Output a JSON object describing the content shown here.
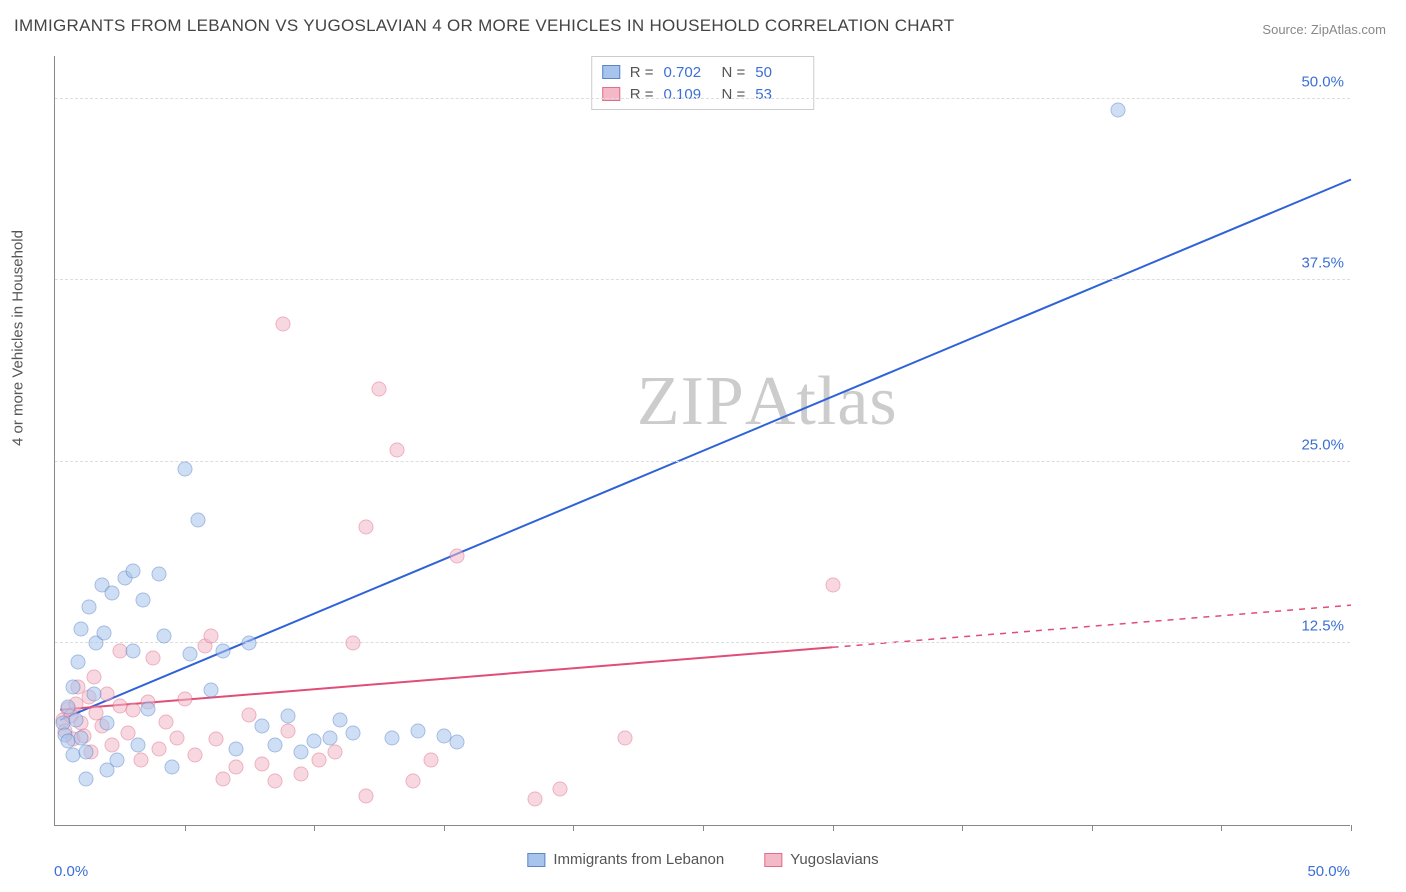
{
  "title": "IMMIGRANTS FROM LEBANON VS YUGOSLAVIAN 4 OR MORE VEHICLES IN HOUSEHOLD CORRELATION CHART",
  "source_label": "Source:",
  "source_name": "ZipAtlas.com",
  "yaxis_title": "4 or more Vehicles in Household",
  "watermark": {
    "bold": "ZIP",
    "light": "Atlas"
  },
  "chart": {
    "type": "scatter",
    "background_color": "#ffffff",
    "grid_color": "#dddddd",
    "axis_color": "#888888",
    "tick_label_color": "#3b6fd4",
    "tick_fontsize": 15,
    "xlim": [
      0,
      50
    ],
    "ylim": [
      0,
      53
    ],
    "xtick_label_min": "0.0%",
    "xtick_label_max": "50.0%",
    "xtick_positions": [
      5,
      10,
      15,
      20,
      25,
      30,
      35,
      40,
      45,
      50
    ],
    "ytick_positions": [
      12.5,
      25.0,
      37.5,
      50.0
    ],
    "ytick_labels": [
      "12.5%",
      "25.0%",
      "37.5%",
      "50.0%"
    ],
    "marker_size": 15,
    "marker_opacity": 0.55,
    "series": [
      {
        "name": "Immigrants from Lebanon",
        "fill_color": "#a7c4ec",
        "stroke_color": "#5a85c9",
        "line_color": "#2f62d9",
        "line_width": 2,
        "trend": {
          "x1": 0.2,
          "y1": 7.3,
          "x2": 50,
          "y2": 44.5,
          "dash_extent_x": 50
        },
        "R": "0.702",
        "N": "50",
        "points": [
          [
            0.3,
            7.0
          ],
          [
            0.4,
            6.2
          ],
          [
            0.5,
            5.8
          ],
          [
            0.5,
            8.1
          ],
          [
            0.7,
            9.5
          ],
          [
            0.7,
            4.8
          ],
          [
            0.8,
            7.2
          ],
          [
            0.9,
            11.2
          ],
          [
            1.0,
            6.0
          ],
          [
            1.0,
            13.5
          ],
          [
            1.2,
            5.0
          ],
          [
            1.3,
            15.0
          ],
          [
            1.5,
            9.0
          ],
          [
            1.6,
            12.5
          ],
          [
            1.8,
            16.5
          ],
          [
            1.9,
            13.2
          ],
          [
            2.0,
            7.0
          ],
          [
            2.2,
            16.0
          ],
          [
            2.4,
            4.5
          ],
          [
            2.7,
            17.0
          ],
          [
            3.0,
            17.5
          ],
          [
            3.0,
            12.0
          ],
          [
            3.2,
            5.5
          ],
          [
            3.4,
            15.5
          ],
          [
            3.6,
            8.0
          ],
          [
            4.0,
            17.3
          ],
          [
            4.2,
            13.0
          ],
          [
            4.5,
            4.0
          ],
          [
            5.0,
            24.5
          ],
          [
            5.2,
            11.8
          ],
          [
            5.5,
            21.0
          ],
          [
            6.0,
            9.3
          ],
          [
            6.5,
            12.0
          ],
          [
            7.0,
            5.2
          ],
          [
            7.5,
            12.5
          ],
          [
            8.0,
            6.8
          ],
          [
            8.5,
            5.5
          ],
          [
            9.0,
            7.5
          ],
          [
            9.5,
            5.0
          ],
          [
            10.0,
            5.8
          ],
          [
            10.6,
            6.0
          ],
          [
            11.0,
            7.2
          ],
          [
            11.5,
            6.3
          ],
          [
            13.0,
            6.0
          ],
          [
            14.0,
            6.5
          ],
          [
            15.0,
            6.1
          ],
          [
            15.5,
            5.7
          ],
          [
            41.0,
            49.2
          ],
          [
            2.0,
            3.8
          ],
          [
            1.2,
            3.2
          ]
        ]
      },
      {
        "name": "Yugoslavians",
        "fill_color": "#f3b9c7",
        "stroke_color": "#e16f8c",
        "line_color": "#e04d78",
        "line_width": 2,
        "trend": {
          "x1": 0.2,
          "y1": 8.0,
          "x2": 30,
          "y2": 12.3,
          "dash_extent_x": 50,
          "dash_y2": 15.2
        },
        "R": "0.109",
        "N": "53",
        "points": [
          [
            0.3,
            7.2
          ],
          [
            0.4,
            6.5
          ],
          [
            0.5,
            8.0
          ],
          [
            0.6,
            7.5
          ],
          [
            0.7,
            5.9
          ],
          [
            0.8,
            8.3
          ],
          [
            1.0,
            7.0
          ],
          [
            1.1,
            6.1
          ],
          [
            1.3,
            8.8
          ],
          [
            1.4,
            5.0
          ],
          [
            1.6,
            7.7
          ],
          [
            1.8,
            6.8
          ],
          [
            2.0,
            9.0
          ],
          [
            2.2,
            5.5
          ],
          [
            2.5,
            8.2
          ],
          [
            2.8,
            6.3
          ],
          [
            3.0,
            7.9
          ],
          [
            3.3,
            4.5
          ],
          [
            3.6,
            8.5
          ],
          [
            4.0,
            5.2
          ],
          [
            4.3,
            7.1
          ],
          [
            4.7,
            6.0
          ],
          [
            5.0,
            8.7
          ],
          [
            5.4,
            4.8
          ],
          [
            5.8,
            12.3
          ],
          [
            6.2,
            5.9
          ],
          [
            6.5,
            3.2
          ],
          [
            7.0,
            4.0
          ],
          [
            7.5,
            7.6
          ],
          [
            8.0,
            4.2
          ],
          [
            8.5,
            3.0
          ],
          [
            9.0,
            6.5
          ],
          [
            9.5,
            3.5
          ],
          [
            8.8,
            34.5
          ],
          [
            10.2,
            4.5
          ],
          [
            10.8,
            5.0
          ],
          [
            11.5,
            12.5
          ],
          [
            12.0,
            2.0
          ],
          [
            12.5,
            30.0
          ],
          [
            13.2,
            25.8
          ],
          [
            13.8,
            3.0
          ],
          [
            12.0,
            20.5
          ],
          [
            14.5,
            4.5
          ],
          [
            15.5,
            18.5
          ],
          [
            18.5,
            1.8
          ],
          [
            19.5,
            2.5
          ],
          [
            22.0,
            6.0
          ],
          [
            30.0,
            16.5
          ],
          [
            2.5,
            12.0
          ],
          [
            3.8,
            11.5
          ],
          [
            1.5,
            10.2
          ],
          [
            0.9,
            9.5
          ],
          [
            6.0,
            13.0
          ]
        ]
      }
    ]
  },
  "legend_top": {
    "R_label": "R =",
    "N_label": "N ="
  },
  "legend_bottom_labels": [
    "Immigrants from Lebanon",
    "Yugoslavians"
  ]
}
